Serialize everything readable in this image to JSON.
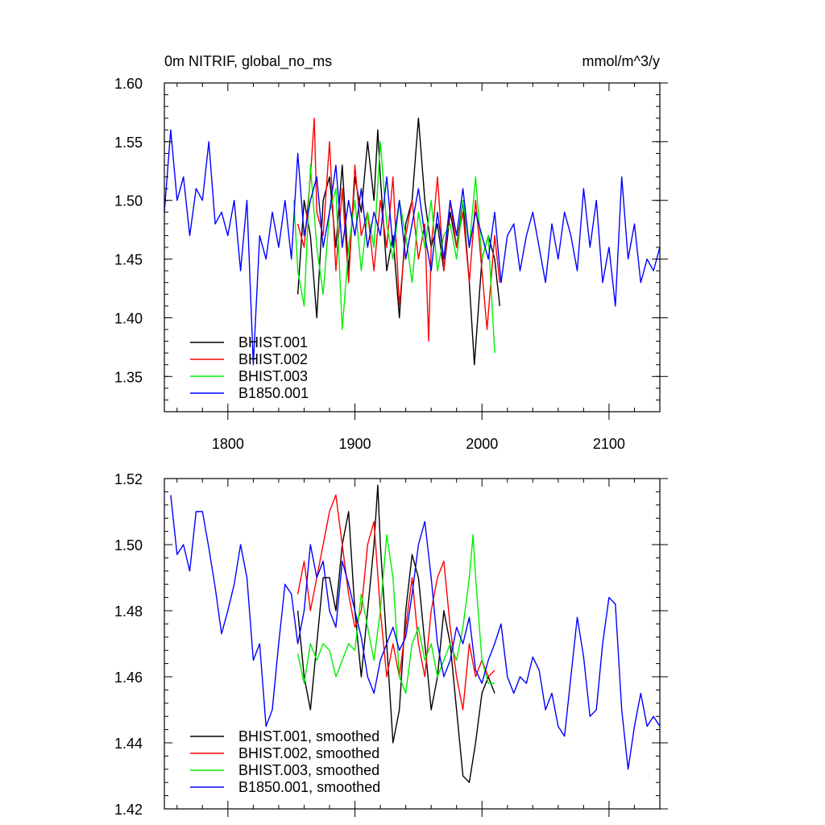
{
  "chart_data": [
    {
      "type": "line",
      "title": "0m NITRIF, global_no_ms",
      "units": "mmol/m^3/y",
      "xlim": [
        1750,
        2140
      ],
      "ylim": [
        1.32,
        1.6
      ],
      "x_ticks": [
        1800,
        1900,
        2000,
        2100
      ],
      "x_tick_labels": [
        "1800",
        "1900",
        "2000",
        "2100"
      ],
      "y_ticks": [
        1.35,
        1.4,
        1.45,
        1.5,
        1.55,
        1.6
      ],
      "y_tick_labels": [
        "1.35",
        "1.40",
        "1.45",
        "1.50",
        "1.55",
        "1.60"
      ],
      "legend_position": "bottom-left",
      "grid": false,
      "series": [
        {
          "name": "BHIST.001",
          "color": "#000000",
          "x": [
            1855,
            1860,
            1865,
            1870,
            1875,
            1880,
            1885,
            1890,
            1895,
            1900,
            1905,
            1910,
            1915,
            1918,
            1920,
            1925,
            1930,
            1935,
            1940,
            1945,
            1950,
            1955,
            1960,
            1965,
            1970,
            1975,
            1980,
            1985,
            1990,
            1994,
            2000,
            2005,
            2010,
            2014
          ],
          "values": [
            1.42,
            1.5,
            1.47,
            1.4,
            1.5,
            1.52,
            1.46,
            1.53,
            1.44,
            1.52,
            1.49,
            1.55,
            1.5,
            1.56,
            1.52,
            1.44,
            1.47,
            1.4,
            1.48,
            1.5,
            1.57,
            1.5,
            1.46,
            1.48,
            1.44,
            1.49,
            1.46,
            1.5,
            1.43,
            1.36,
            1.45,
            1.47,
            1.45,
            1.41
          ]
        },
        {
          "name": "BHIST.002",
          "color": "#ff0000",
          "x": [
            1855,
            1860,
            1865,
            1868,
            1870,
            1875,
            1880,
            1885,
            1890,
            1895,
            1900,
            1905,
            1910,
            1915,
            1920,
            1925,
            1930,
            1935,
            1940,
            1945,
            1950,
            1955,
            1958,
            1960,
            1965,
            1970,
            1975,
            1980,
            1985,
            1990,
            1995,
            2000,
            2004,
            2010,
            2014
          ],
          "values": [
            1.48,
            1.46,
            1.52,
            1.57,
            1.49,
            1.47,
            1.55,
            1.44,
            1.51,
            1.43,
            1.53,
            1.47,
            1.49,
            1.44,
            1.5,
            1.46,
            1.52,
            1.41,
            1.47,
            1.5,
            1.45,
            1.48,
            1.38,
            1.46,
            1.52,
            1.44,
            1.5,
            1.46,
            1.49,
            1.43,
            1.5,
            1.44,
            1.39,
            1.47,
            1.43
          ]
        },
        {
          "name": "BHIST.003",
          "color": "#00ee00",
          "x": [
            1852,
            1855,
            1860,
            1865,
            1870,
            1875,
            1880,
            1885,
            1890,
            1895,
            1900,
            1905,
            1910,
            1915,
            1920,
            1925,
            1930,
            1935,
            1940,
            1945,
            1950,
            1955,
            1960,
            1965,
            1970,
            1975,
            1980,
            1985,
            1990,
            1995,
            2000,
            2005,
            2010
          ],
          "values": [
            1.5,
            1.44,
            1.41,
            1.53,
            1.46,
            1.42,
            1.49,
            1.51,
            1.39,
            1.46,
            1.5,
            1.44,
            1.49,
            1.46,
            1.55,
            1.48,
            1.45,
            1.5,
            1.47,
            1.43,
            1.49,
            1.46,
            1.5,
            1.44,
            1.47,
            1.48,
            1.45,
            1.5,
            1.46,
            1.52,
            1.45,
            1.47,
            1.37
          ]
        },
        {
          "name": "B1850.001",
          "color": "#0000ff",
          "x": [
            1750,
            1755,
            1760,
            1765,
            1770,
            1775,
            1780,
            1785,
            1790,
            1795,
            1800,
            1805,
            1810,
            1815,
            1820,
            1825,
            1830,
            1835,
            1840,
            1845,
            1850,
            1855,
            1860,
            1865,
            1870,
            1875,
            1880,
            1885,
            1890,
            1895,
            1900,
            1905,
            1910,
            1915,
            1920,
            1925,
            1930,
            1935,
            1940,
            1945,
            1950,
            1955,
            1960,
            1965,
            1970,
            1975,
            1980,
            1985,
            1990,
            1995,
            2000,
            2005,
            2010,
            2015,
            2020,
            2025,
            2030,
            2035,
            2040,
            2045,
            2050,
            2055,
            2060,
            2065,
            2070,
            2075,
            2080,
            2085,
            2090,
            2095,
            2100,
            2105,
            2110,
            2115,
            2120,
            2125,
            2130,
            2135,
            2140
          ],
          "values": [
            1.49,
            1.56,
            1.5,
            1.52,
            1.47,
            1.51,
            1.5,
            1.55,
            1.48,
            1.49,
            1.47,
            1.5,
            1.44,
            1.5,
            1.36,
            1.47,
            1.45,
            1.49,
            1.46,
            1.5,
            1.45,
            1.54,
            1.47,
            1.5,
            1.52,
            1.46,
            1.49,
            1.53,
            1.46,
            1.5,
            1.47,
            1.51,
            1.46,
            1.49,
            1.47,
            1.52,
            1.46,
            1.5,
            1.45,
            1.48,
            1.51,
            1.47,
            1.44,
            1.49,
            1.45,
            1.5,
            1.47,
            1.51,
            1.46,
            1.49,
            1.47,
            1.45,
            1.49,
            1.43,
            1.47,
            1.48,
            1.44,
            1.47,
            1.49,
            1.46,
            1.43,
            1.48,
            1.45,
            1.49,
            1.47,
            1.44,
            1.51,
            1.46,
            1.5,
            1.43,
            1.46,
            1.41,
            1.52,
            1.45,
            1.48,
            1.43,
            1.45,
            1.44,
            1.46
          ]
        }
      ]
    },
    {
      "type": "line",
      "xlim": [
        1750,
        2140
      ],
      "ylim": [
        1.42,
        1.52
      ],
      "x_ticks": [
        1800,
        1900,
        2000,
        2100
      ],
      "y_ticks": [
        1.42,
        1.44,
        1.46,
        1.48,
        1.5,
        1.52
      ],
      "y_tick_labels": [
        "1.42",
        "1.44",
        "1.46",
        "1.48",
        "1.50",
        "1.52"
      ],
      "legend_position": "bottom-left",
      "grid": false,
      "series": [
        {
          "name": "BHIST.001, smoothed",
          "color": "#000000",
          "x": [
            1855,
            1860,
            1865,
            1870,
            1875,
            1880,
            1885,
            1890,
            1895,
            1900,
            1905,
            1910,
            1915,
            1918,
            1920,
            1925,
            1930,
            1935,
            1940,
            1945,
            1950,
            1955,
            1960,
            1965,
            1970,
            1975,
            1980,
            1985,
            1990,
            1995,
            2000,
            2005,
            2010
          ],
          "values": [
            1.48,
            1.46,
            1.45,
            1.47,
            1.49,
            1.49,
            1.48,
            1.5,
            1.51,
            1.48,
            1.46,
            1.48,
            1.5,
            1.518,
            1.5,
            1.47,
            1.44,
            1.45,
            1.48,
            1.497,
            1.49,
            1.47,
            1.45,
            1.46,
            1.48,
            1.47,
            1.45,
            1.43,
            1.428,
            1.44,
            1.455,
            1.46,
            1.455
          ]
        },
        {
          "name": "BHIST.002, smoothed",
          "color": "#ff0000",
          "x": [
            1855,
            1860,
            1865,
            1870,
            1875,
            1880,
            1885,
            1890,
            1895,
            1900,
            1905,
            1910,
            1915,
            1920,
            1925,
            1930,
            1935,
            1940,
            1945,
            1950,
            1955,
            1960,
            1965,
            1970,
            1975,
            1980,
            1985,
            1990,
            1995,
            2000,
            2005,
            2010
          ],
          "values": [
            1.485,
            1.495,
            1.48,
            1.49,
            1.5,
            1.51,
            1.515,
            1.5,
            1.485,
            1.475,
            1.48,
            1.5,
            1.507,
            1.48,
            1.46,
            1.47,
            1.46,
            1.475,
            1.49,
            1.47,
            1.46,
            1.48,
            1.49,
            1.495,
            1.475,
            1.46,
            1.45,
            1.47,
            1.46,
            1.465,
            1.46,
            1.462
          ]
        },
        {
          "name": "BHIST.003, smoothed",
          "color": "#00ee00",
          "x": [
            1855,
            1860,
            1865,
            1870,
            1875,
            1880,
            1885,
            1890,
            1895,
            1900,
            1905,
            1910,
            1915,
            1920,
            1925,
            1930,
            1935,
            1940,
            1945,
            1950,
            1955,
            1960,
            1965,
            1970,
            1975,
            1980,
            1985,
            1990,
            1993,
            1995,
            2000,
            2005,
            2010
          ],
          "values": [
            1.467,
            1.458,
            1.47,
            1.465,
            1.47,
            1.468,
            1.46,
            1.465,
            1.47,
            1.468,
            1.485,
            1.475,
            1.465,
            1.48,
            1.503,
            1.49,
            1.46,
            1.455,
            1.47,
            1.475,
            1.465,
            1.47,
            1.46,
            1.465,
            1.47,
            1.465,
            1.475,
            1.49,
            1.503,
            1.49,
            1.465,
            1.458,
            1.458
          ]
        },
        {
          "name": "B1850.001, smoothed",
          "color": "#0000ff",
          "x": [
            1755,
            1760,
            1765,
            1770,
            1775,
            1780,
            1785,
            1790,
            1795,
            1800,
            1805,
            1810,
            1815,
            1820,
            1825,
            1830,
            1835,
            1840,
            1845,
            1850,
            1855,
            1860,
            1865,
            1870,
            1875,
            1880,
            1885,
            1890,
            1895,
            1900,
            1905,
            1910,
            1915,
            1920,
            1925,
            1930,
            1935,
            1940,
            1945,
            1950,
            1955,
            1960,
            1965,
            1970,
            1975,
            1980,
            1985,
            1990,
            1995,
            2000,
            2005,
            2010,
            2015,
            2020,
            2025,
            2030,
            2035,
            2040,
            2045,
            2050,
            2055,
            2060,
            2065,
            2070,
            2075,
            2080,
            2085,
            2090,
            2095,
            2100,
            2105,
            2110,
            2115,
            2120,
            2125,
            2130,
            2135,
            2140
          ],
          "values": [
            1.515,
            1.497,
            1.5,
            1.492,
            1.51,
            1.51,
            1.499,
            1.487,
            1.473,
            1.48,
            1.488,
            1.5,
            1.49,
            1.465,
            1.47,
            1.445,
            1.45,
            1.47,
            1.488,
            1.485,
            1.47,
            1.48,
            1.5,
            1.49,
            1.495,
            1.48,
            1.475,
            1.495,
            1.488,
            1.48,
            1.472,
            1.46,
            1.455,
            1.465,
            1.47,
            1.475,
            1.468,
            1.472,
            1.485,
            1.5,
            1.507,
            1.49,
            1.47,
            1.46,
            1.465,
            1.475,
            1.47,
            1.478,
            1.462,
            1.458,
            1.465,
            1.47,
            1.476,
            1.46,
            1.455,
            1.46,
            1.458,
            1.466,
            1.462,
            1.45,
            1.455,
            1.445,
            1.442,
            1.46,
            1.478,
            1.466,
            1.448,
            1.45,
            1.47,
            1.484,
            1.482,
            1.45,
            1.432,
            1.445,
            1.455,
            1.445,
            1.448,
            1.445
          ]
        }
      ]
    }
  ]
}
